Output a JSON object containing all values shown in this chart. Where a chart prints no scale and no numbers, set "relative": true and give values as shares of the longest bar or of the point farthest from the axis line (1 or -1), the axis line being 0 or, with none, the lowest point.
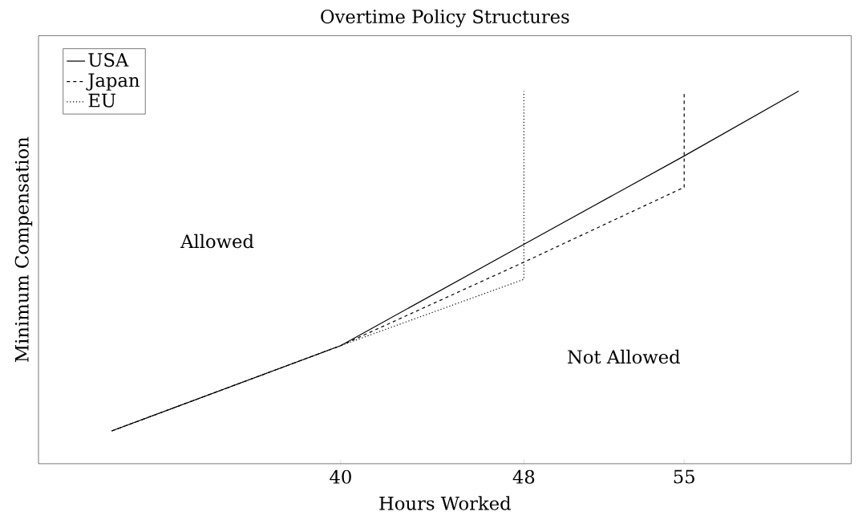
{
  "chart_data": {
    "type": "line",
    "title": "Overtime Policy Structures",
    "xlabel": "Hours Worked",
    "ylabel": "Minimum Compensation",
    "relative": true,
    "xlim": [
      26.8,
      62.3
    ],
    "xticks": [
      40,
      48,
      55
    ],
    "legend": "top left",
    "marker": "none",
    "series": [
      {
        "name": "USA",
        "color": "#000000",
        "line_style": "solid",
        "x": [
          30,
          40,
          48,
          55,
          60
        ],
        "values": [
          0.088,
          0.317,
          0.589,
          0.826,
          1
        ]
      },
      {
        "name": "Japan",
        "color": "#000000",
        "line_style": "dashed",
        "x": [
          30,
          40,
          48,
          55,
          55
        ],
        "values": [
          0.088,
          0.317,
          0.541,
          0.742,
          1
        ]
      },
      {
        "name": "EU",
        "color": "#000000",
        "line_style": "dotted",
        "x": [
          30,
          40,
          48,
          48
        ],
        "values": [
          0.088,
          0.317,
          0.495,
          1
        ]
      }
    ],
    "annotations": [
      "Allowed",
      "Not Allowed"
    ]
  }
}
